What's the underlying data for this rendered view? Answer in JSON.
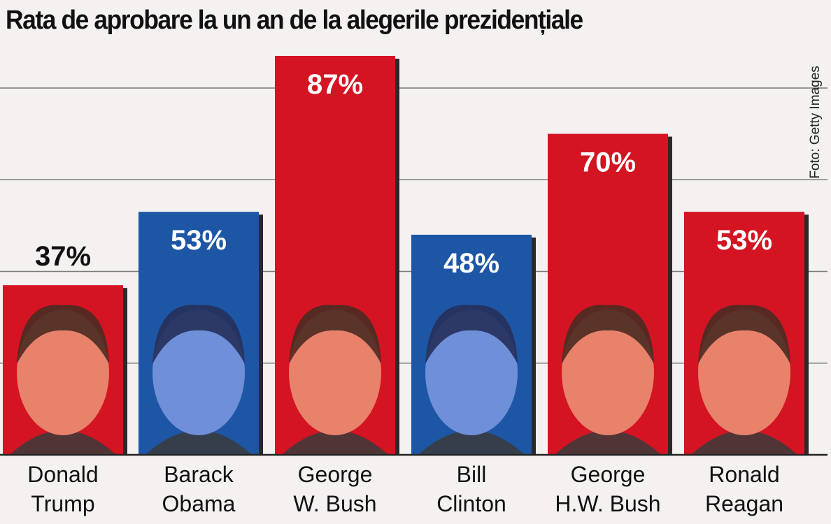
{
  "chart_data": {
    "type": "bar",
    "title": "Rata de aprobare la un an de la alegerile prezidențiale",
    "categories": [
      "Donald Trump",
      "Barack Obama",
      "George W. Bush",
      "Bill Clinton",
      "George H.W. Bush",
      "Ronald Reagan"
    ],
    "category_lines": [
      [
        "Donald",
        "Trump"
      ],
      [
        "Barack",
        "Obama"
      ],
      [
        "George",
        "W. Bush"
      ],
      [
        "Bill",
        "Clinton"
      ],
      [
        "George",
        "H.W. Bush"
      ],
      [
        "Ronald",
        "Reagan"
      ]
    ],
    "values": [
      37,
      53,
      87,
      48,
      70,
      53
    ],
    "value_labels": [
      "37%",
      "53%",
      "87%",
      "48%",
      "70%",
      "53%"
    ],
    "bar_colors": [
      "#d41422",
      "#1e56a6",
      "#d41422",
      "#1e56a6",
      "#d41422",
      "#d41422"
    ],
    "ylim": [
      0,
      100
    ],
    "grid": true,
    "credit": "Foto: Getty Images"
  }
}
